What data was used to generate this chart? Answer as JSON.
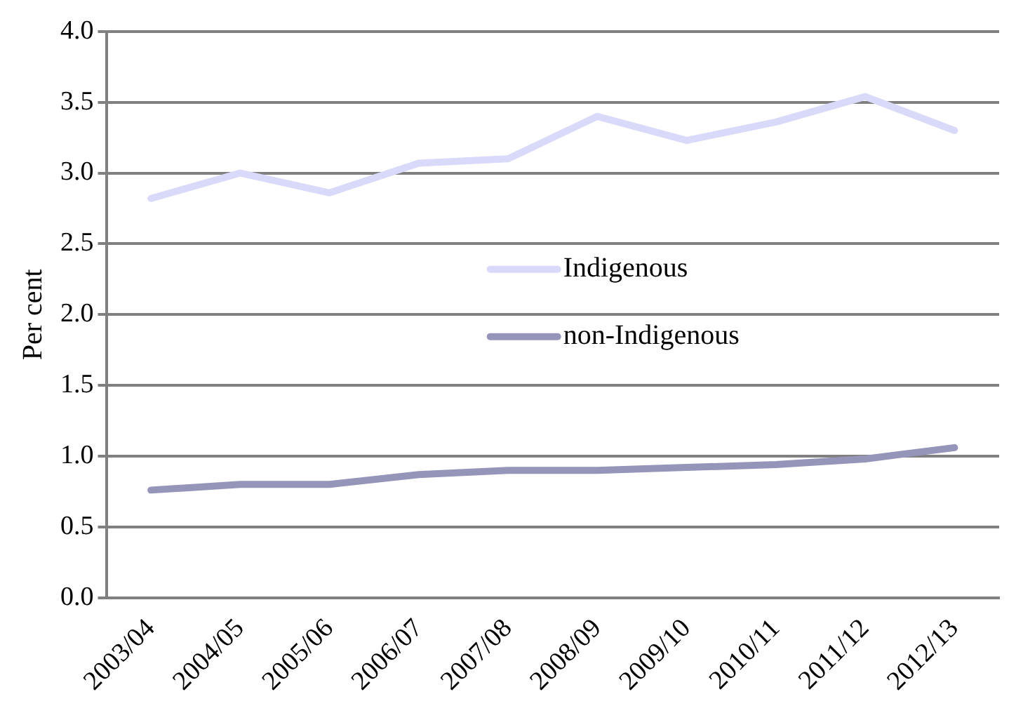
{
  "chart_data": {
    "type": "line",
    "ylabel": "Per cent",
    "categories": [
      "2003/04",
      "2004/05",
      "2005/06",
      "2006/07",
      "2007/08",
      "2008/09",
      "2009/10",
      "2010/11",
      "2011/12",
      "2012/13"
    ],
    "series": [
      {
        "name": "Indigenous",
        "color": "#d9d9fa",
        "values": [
          2.82,
          3.0,
          2.86,
          3.07,
          3.1,
          3.4,
          3.23,
          3.36,
          3.54,
          3.3
        ]
      },
      {
        "name": "non-Indigenous",
        "color": "#9595ba",
        "values": [
          0.76,
          0.8,
          0.8,
          0.87,
          0.9,
          0.9,
          0.92,
          0.94,
          0.98,
          1.06
        ]
      }
    ],
    "ylim": [
      0,
      4
    ],
    "yticks": [
      {
        "value": 0,
        "label": "0.0"
      },
      {
        "value": 0.5,
        "label": "0.5"
      },
      {
        "value": 1,
        "label": "1.0"
      },
      {
        "value": 1.5,
        "label": "1.5"
      },
      {
        "value": 2,
        "label": "2.0"
      },
      {
        "value": 2.5,
        "label": "2.5"
      },
      {
        "value": 3,
        "label": "3.0"
      },
      {
        "value": 3.5,
        "label": "3.5"
      },
      {
        "value": 4,
        "label": "4.0"
      }
    ],
    "grid": "y",
    "legend": "center",
    "marker": "none",
    "line_style": "solid"
  }
}
